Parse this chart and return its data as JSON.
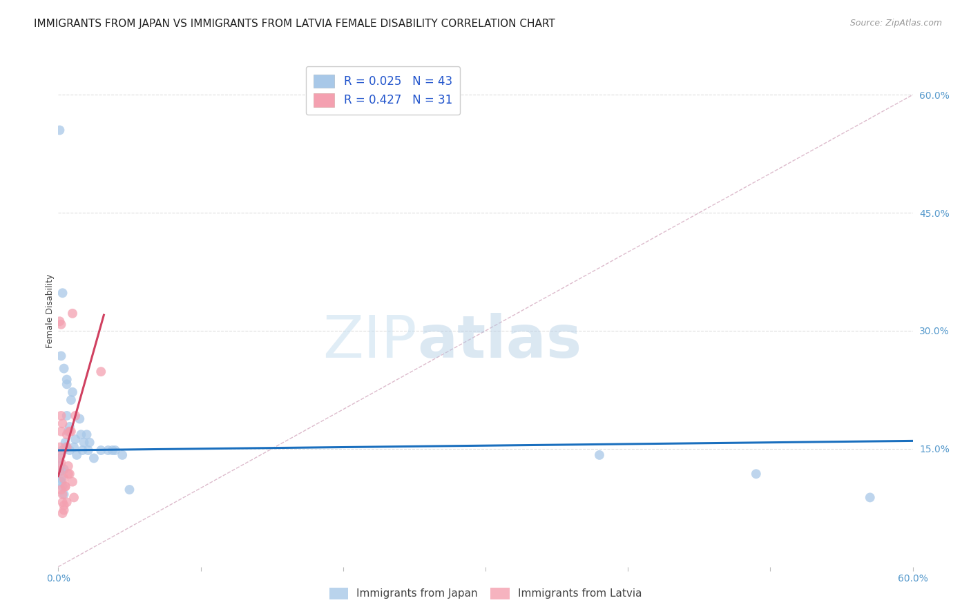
{
  "title": "IMMIGRANTS FROM JAPAN VS IMMIGRANTS FROM LATVIA FEMALE DISABILITY CORRELATION CHART",
  "source": "Source: ZipAtlas.com",
  "ylabel": "Female Disability",
  "xlim": [
    0.0,
    0.6
  ],
  "ylim": [
    0.0,
    0.65
  ],
  "xticks": [
    0.0,
    0.1,
    0.2,
    0.3,
    0.4,
    0.5,
    0.6
  ],
  "xticklabels": [
    "0.0%",
    "",
    "",
    "",
    "",
    "",
    "60.0%"
  ],
  "yticks_right": [
    0.15,
    0.3,
    0.45,
    0.6
  ],
  "ytick_right_labels": [
    "15.0%",
    "30.0%",
    "45.0%",
    "60.0%"
  ],
  "diagonal_line_x": [
    0.0,
    0.6
  ],
  "diagonal_line_y": [
    0.0,
    0.6
  ],
  "japan_color": "#a8c8e8",
  "latvia_color": "#f4a0b0",
  "japan_dot_color": "#7ab0d8",
  "latvia_dot_color": "#f080a0",
  "japan_R": 0.025,
  "japan_N": 43,
  "latvia_R": 0.427,
  "latvia_N": 31,
  "japan_scatter_x": [
    0.001,
    0.002,
    0.001,
    0.003,
    0.002,
    0.004,
    0.003,
    0.005,
    0.004,
    0.002,
    0.006,
    0.007,
    0.005,
    0.008,
    0.009,
    0.01,
    0.006,
    0.008,
    0.011,
    0.013,
    0.012,
    0.015,
    0.016,
    0.018,
    0.017,
    0.02,
    0.022,
    0.021,
    0.025,
    0.03,
    0.035,
    0.038,
    0.04,
    0.045,
    0.05,
    0.003,
    0.002,
    0.001,
    0.004,
    0.006,
    0.38,
    0.49,
    0.57
  ],
  "japan_scatter_y": [
    0.128,
    0.122,
    0.138,
    0.102,
    0.112,
    0.092,
    0.148,
    0.158,
    0.124,
    0.108,
    0.192,
    0.172,
    0.152,
    0.148,
    0.212,
    0.222,
    0.238,
    0.178,
    0.152,
    0.142,
    0.162,
    0.188,
    0.168,
    0.158,
    0.148,
    0.168,
    0.158,
    0.148,
    0.138,
    0.148,
    0.148,
    0.148,
    0.148,
    0.142,
    0.098,
    0.348,
    0.268,
    0.555,
    0.252,
    0.232,
    0.142,
    0.118,
    0.088
  ],
  "latvia_scatter_x": [
    0.001,
    0.002,
    0.001,
    0.002,
    0.003,
    0.003,
    0.004,
    0.004,
    0.005,
    0.006,
    0.007,
    0.006,
    0.008,
    0.009,
    0.01,
    0.012,
    0.002,
    0.003,
    0.002,
    0.003,
    0.004,
    0.005,
    0.006,
    0.007,
    0.008,
    0.01,
    0.011,
    0.002,
    0.002,
    0.001,
    0.03
  ],
  "latvia_scatter_y": [
    0.152,
    0.142,
    0.122,
    0.132,
    0.092,
    0.082,
    0.072,
    0.112,
    0.102,
    0.152,
    0.118,
    0.168,
    0.172,
    0.172,
    0.322,
    0.192,
    0.192,
    0.182,
    0.098,
    0.068,
    0.078,
    0.102,
    0.082,
    0.128,
    0.118,
    0.108,
    0.088,
    0.308,
    0.172,
    0.312,
    0.248
  ],
  "japan_trend_x": [
    0.0,
    0.6
  ],
  "japan_trend_y": [
    0.148,
    0.16
  ],
  "latvia_trend_x": [
    0.0,
    0.032
  ],
  "latvia_trend_y": [
    0.115,
    0.32
  ],
  "watermark_zip": "ZIP",
  "watermark_atlas": "atlas",
  "background_color": "#ffffff",
  "grid_color": "#dddddd",
  "title_fontsize": 11,
  "axis_label_fontsize": 9,
  "tick_fontsize": 10,
  "legend_r_color": "#2255cc",
  "legend_n_color": "#ff4400",
  "japan_trend_color": "#1a6fbe",
  "latvia_trend_color": "#d04060"
}
